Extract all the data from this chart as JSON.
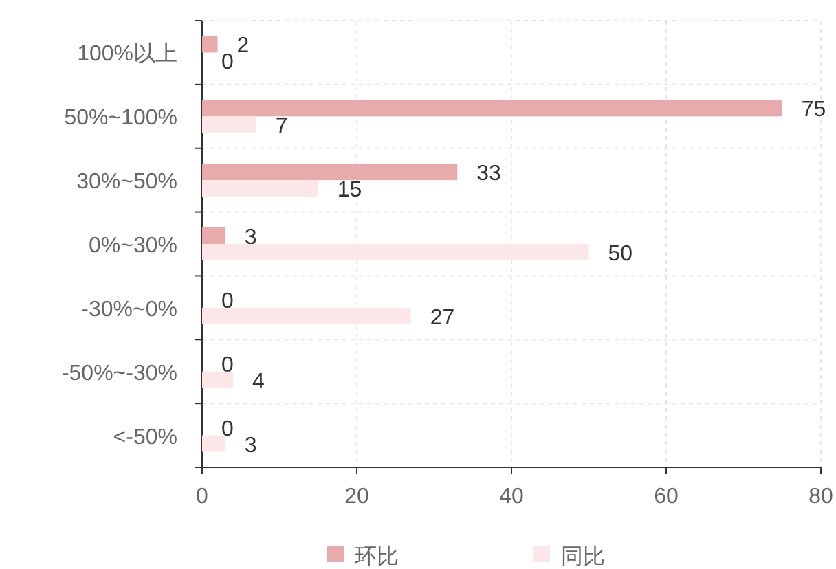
{
  "chart_data": {
    "type": "bar",
    "orientation": "horizontal",
    "categories": [
      "100%以上",
      "50%~100%",
      "30%~50%",
      "0%~30%",
      "-30%~0%",
      "-50%~-30%",
      "<-50%"
    ],
    "series": [
      {
        "name": "环比",
        "color": "#e8aaaa",
        "values": [
          2,
          75,
          33,
          3,
          0,
          0,
          0
        ]
      },
      {
        "name": "同比",
        "color": "#fbe7e7",
        "values": [
          0,
          7,
          15,
          50,
          27,
          4,
          3
        ]
      }
    ],
    "xlim": [
      0,
      80
    ],
    "xticks": [
      0,
      20,
      40,
      60,
      80
    ],
    "grid": true,
    "legend": "bottom",
    "data_labels": true
  }
}
